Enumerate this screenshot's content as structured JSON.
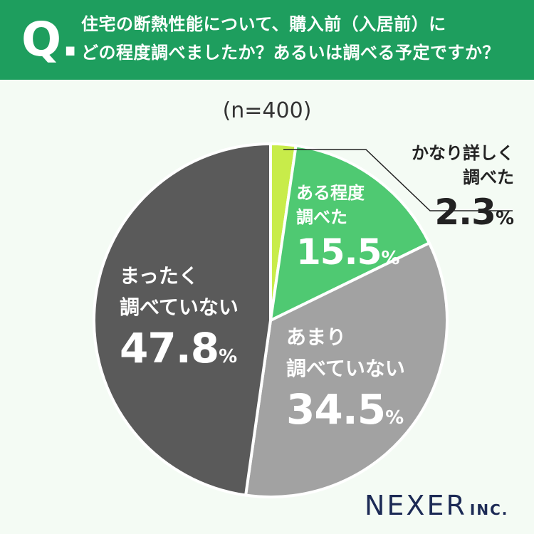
{
  "question": {
    "marker": "Q.",
    "lines": [
      "住宅の断熱性能について、購入前（入居前）に",
      "どの程度調べましたか？あるいは調べる予定ですか？"
    ]
  },
  "sample_size": "(n=400)",
  "brand": {
    "name": "NEXER",
    "suffix": "INC."
  },
  "colors": {
    "header_bg": "#1e9e5e",
    "background": "#f4fbf4",
    "slice_1": "#c8ec4a",
    "slice_2": "#4fc972",
    "slice_3": "#a2a2a2",
    "slice_4": "#5a5a5a"
  },
  "chart_data": {
    "type": "pie",
    "start_angle_deg": 0,
    "direction": "clockwise",
    "slices": [
      {
        "label_lines": [
          "かなり詳しく",
          "調べた"
        ],
        "value": 2.3,
        "display": "2.3",
        "unit": "%",
        "color": "#c8ec4a"
      },
      {
        "label_lines": [
          "ある程度",
          "調べた"
        ],
        "value": 15.5,
        "display": "15.5",
        "unit": "%",
        "color": "#4fc972"
      },
      {
        "label_lines": [
          "あまり",
          "調べていない"
        ],
        "value": 34.5,
        "display": "34.5",
        "unit": "%",
        "color": "#a2a2a2"
      },
      {
        "label_lines": [
          "まったく",
          "調べていない"
        ],
        "value": 47.8,
        "display": "47.8",
        "unit": "%",
        "color": "#5a5a5a"
      }
    ]
  }
}
